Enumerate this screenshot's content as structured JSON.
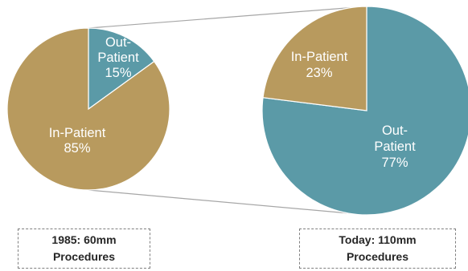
{
  "chart_data": [
    {
      "type": "pie",
      "caption_line1": "1985: 60mm",
      "caption_line2": "Procedures",
      "slices": [
        {
          "label_line1": "Out-",
          "label_line2": "Patient",
          "pct_label": "15%",
          "value": 15,
          "color": "#5b9aa7"
        },
        {
          "label_line1": "In-Patient",
          "label_line2": "",
          "pct_label": "85%",
          "value": 85,
          "color": "#b89a5e"
        }
      ]
    },
    {
      "type": "pie",
      "caption_line1": "Today: 110mm",
      "caption_line2": "Procedures",
      "slices": [
        {
          "label_line1": "Out-",
          "label_line2": "Patient",
          "pct_label": "77%",
          "value": 77,
          "color": "#5b9aa7"
        },
        {
          "label_line1": "In-Patient",
          "label_line2": "",
          "pct_label": "23%",
          "value": 23,
          "color": "#b89a5e"
        }
      ]
    }
  ],
  "connector_color": "#a6a6a6"
}
